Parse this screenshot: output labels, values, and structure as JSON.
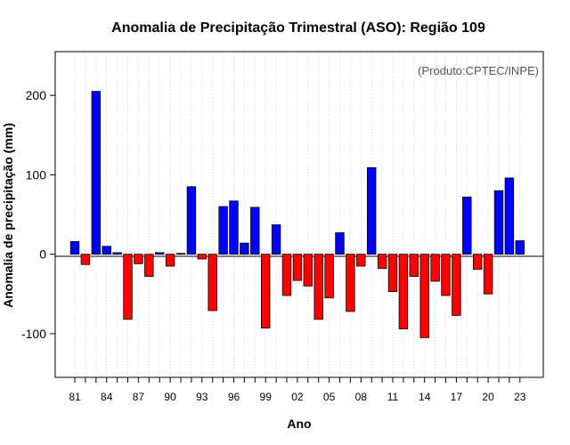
{
  "chart_data": {
    "type": "bar",
    "title": "Anomalia de Precipitação Trimestral (ASO): Região 109",
    "annotation": "(Produto:CPTEC/INPE)",
    "xlabel": "Ano",
    "ylabel": "Anomalia de precipitação (mm)",
    "ylim": [
      -155,
      255
    ],
    "yticks": [
      -100,
      0,
      100,
      200
    ],
    "ytick_labels": [
      "-100",
      "0",
      "100",
      "200"
    ],
    "xtick_labels": [
      "81",
      "84",
      "87",
      "90",
      "93",
      "96",
      "99",
      "02",
      "05",
      "08",
      "11",
      "14",
      "17",
      "20",
      "23"
    ],
    "categories": [
      "81",
      "82",
      "83",
      "84",
      "85",
      "86",
      "87",
      "88",
      "89",
      "90",
      "91",
      "92",
      "93",
      "94",
      "95",
      "96",
      "97",
      "98",
      "99",
      "00",
      "01",
      "02",
      "03",
      "04",
      "05",
      "06",
      "07",
      "08",
      "09",
      "10",
      "11",
      "12",
      "13",
      "14",
      "15",
      "16",
      "17",
      "18",
      "19",
      "20",
      "21",
      "22",
      "23"
    ],
    "values": [
      16,
      -13,
      205,
      10,
      2,
      -82,
      -12,
      -28,
      2,
      -15,
      1,
      85,
      -6,
      -71,
      60,
      67,
      14,
      59,
      -93,
      37,
      -52,
      -33,
      -40,
      -82,
      -55,
      27,
      -72,
      -15,
      109,
      -18,
      -47,
      -94,
      -28,
      -105,
      -34,
      -52,
      -77,
      72,
      -19,
      -50,
      80,
      96,
      17
    ],
    "positive_color": "#0000ff",
    "negative_color": "#ff0000",
    "grid": true
  }
}
